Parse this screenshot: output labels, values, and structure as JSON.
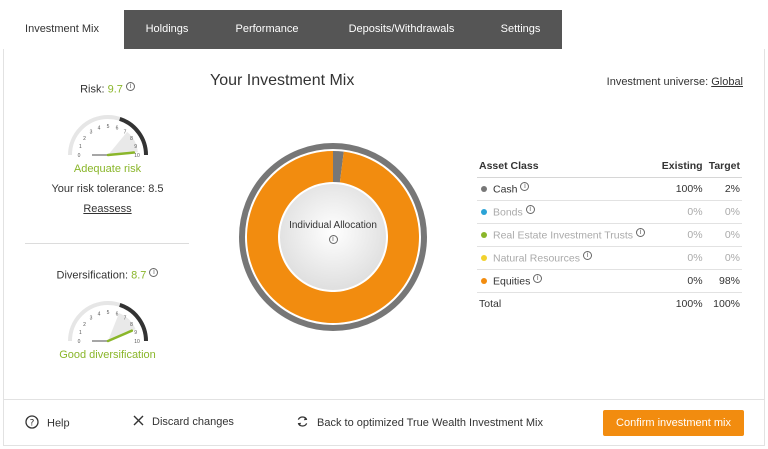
{
  "tabs": [
    {
      "label": "Investment Mix"
    },
    {
      "label": "Holdings"
    },
    {
      "label": "Performance"
    },
    {
      "label": "Deposits/Withdrawals"
    },
    {
      "label": "Settings"
    }
  ],
  "risk": {
    "label": "Risk:",
    "value": "9.7",
    "status": "Adequate risk",
    "tolerance": "Your risk tolerance: 8.5",
    "link": "Reassess",
    "level": 9.7,
    "tick_labels": [
      "0",
      "1",
      "2",
      "3",
      "4",
      "5",
      "6",
      "7",
      "8",
      "9",
      "10"
    ]
  },
  "diversification": {
    "label": "Diversification:",
    "value": "8.7",
    "status": "Good diversification",
    "level": 8.7,
    "tick_labels": [
      "0",
      "1",
      "2",
      "3",
      "4",
      "5",
      "6",
      "7",
      "8",
      "9",
      "10"
    ]
  },
  "main": {
    "title": "Your Investment Mix",
    "universe_label": "Investment universe:",
    "universe_value": "Global",
    "center_label": "Individual Allocation"
  },
  "table": {
    "headers": {
      "asset_class": "Asset Class",
      "existing": "Existing",
      "target": "Target"
    },
    "rows": [
      {
        "name": "Cash",
        "existing": "100%",
        "target": "2%",
        "color": "#777777",
        "muted": false
      },
      {
        "name": "Bonds",
        "existing": "0%",
        "target": "0%",
        "color": "#2ba3d6",
        "muted": true
      },
      {
        "name": "Real Estate Investment Trusts",
        "existing": "0%",
        "target": "0%",
        "color": "#8ab62a",
        "muted": true
      },
      {
        "name": "Natural Resources",
        "existing": "0%",
        "target": "0%",
        "color": "#f2d22e",
        "muted": true
      },
      {
        "name": "Equities",
        "existing": "0%",
        "target": "98%",
        "color": "#f28c0f",
        "muted": false
      }
    ],
    "total": {
      "name": "Total",
      "existing": "100%",
      "target": "100%"
    }
  },
  "allocation": {
    "cash": 2,
    "equities": 98
  },
  "colors": {
    "accent_green": "#8ab62a",
    "orange": "#f28c0f",
    "tab_bg": "#555555",
    "cash_gray": "#777777"
  },
  "footer": {
    "help": "Help",
    "discard": "Discard changes",
    "back": "Back to optimized True Wealth Investment Mix",
    "confirm": "Confirm investment mix"
  }
}
